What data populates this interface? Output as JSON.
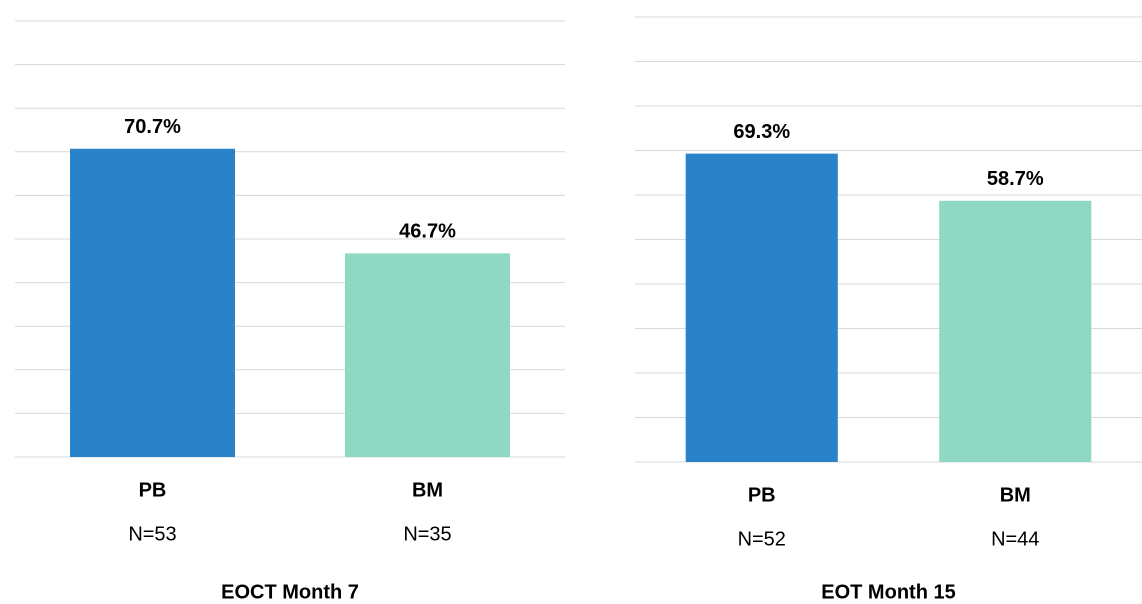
{
  "chart_data": [
    {
      "type": "bar",
      "title": "EOCT Month 7",
      "categories": [
        "PB",
        "BM"
      ],
      "sample_sizes": [
        "N=53",
        "N=35"
      ],
      "values": [
        70.7,
        46.7
      ],
      "value_labels": [
        "70.7%",
        "46.7%"
      ],
      "colors": [
        "#2a82c8",
        "#8fd8c4"
      ],
      "ylim": [
        0,
        100
      ],
      "yticks": [
        0,
        10,
        20,
        30,
        40,
        50,
        60,
        70,
        80,
        90,
        100
      ],
      "grid": true
    },
    {
      "type": "bar",
      "title": "EOT Month 15",
      "categories": [
        "PB",
        "BM"
      ],
      "sample_sizes": [
        "N=52",
        "N=44"
      ],
      "values": [
        69.3,
        58.7
      ],
      "value_labels": [
        "69.3%",
        "58.7%"
      ],
      "colors": [
        "#2a82c8",
        "#8fd8c4"
      ],
      "ylim": [
        0,
        100
      ],
      "yticks": [
        0,
        10,
        20,
        30,
        40,
        50,
        60,
        70,
        80,
        90,
        100
      ],
      "grid": true
    }
  ]
}
